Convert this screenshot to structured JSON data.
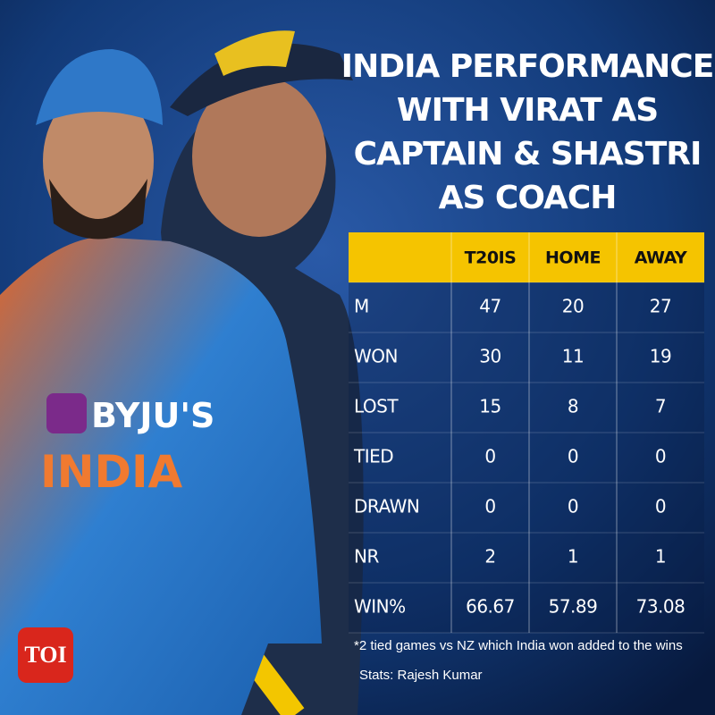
{
  "title_lines": [
    "INDIA PERFORMANCE",
    "WITH VIRAT AS",
    "CAPTAIN & SHASTRI",
    "AS COACH"
  ],
  "table": {
    "header": [
      "T20IS",
      "HOME",
      "AWAY"
    ],
    "rows": [
      [
        "M",
        "47",
        "20",
        "27"
      ],
      [
        "WON",
        "30",
        "11",
        "19"
      ],
      [
        "LOST",
        "15",
        "8",
        "7"
      ],
      [
        "TIED",
        "0",
        "0",
        "0"
      ],
      [
        "DRAWN",
        "0",
        "0",
        "0"
      ],
      [
        "NR",
        "2",
        "1",
        "1"
      ],
      [
        "WIN%",
        "66.67",
        "57.89",
        "73.08"
      ]
    ]
  },
  "footnote": "*2 tied games vs NZ which India won added to the wins",
  "credit": "Stats: Rajesh Kumar",
  "jersey": {
    "sponsor": "BYJU'S",
    "team": "INDIA"
  },
  "logo": "TOI"
}
